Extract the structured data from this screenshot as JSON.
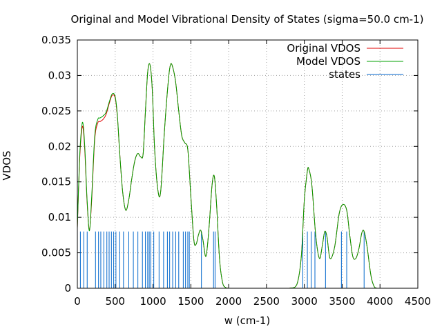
{
  "chart_data": {
    "type": "line",
    "title": "Original and Model Vibrational Density of States (sigma=50.0 cm-1)",
    "xlabel": "w (cm-1)",
    "ylabel": "VDOS",
    "xlim": [
      0,
      4500
    ],
    "ylim": [
      0,
      0.035
    ],
    "xticks": [
      "0",
      "500",
      "1000",
      "1500",
      "2000",
      "2500",
      "3000",
      "3500",
      "4000",
      "4500"
    ],
    "yticks": [
      "0",
      "0.005",
      "0.01",
      "0.015",
      "0.02",
      "0.025",
      "0.03",
      "0.035"
    ],
    "grid": true,
    "legend_position": "top-right",
    "series": [
      {
        "name": "Original VDOS",
        "color": "#e00000",
        "style": "line",
        "x": [
          0,
          30,
          60,
          80,
          100,
          130,
          160,
          190,
          230,
          270,
          300,
          340,
          380,
          420,
          460,
          500,
          530,
          560,
          600,
          640,
          680,
          720,
          760,
          800,
          840,
          870,
          900,
          930,
          960,
          990,
          1020,
          1060,
          1100,
          1150,
          1200,
          1230,
          1260,
          1300,
          1340,
          1380,
          1420,
          1460,
          1500,
          1540,
          1570,
          1600,
          1630,
          1660,
          1700,
          1740,
          1780,
          1810,
          1840,
          1880,
          1920,
          1960,
          2000,
          2100,
          2500,
          2800,
          2900,
          2960,
          3000,
          3040,
          3060,
          3100,
          3150,
          3200,
          3240,
          3270,
          3300,
          3340,
          3400,
          3460,
          3510,
          3560,
          3600,
          3640,
          3680,
          3720,
          3760,
          3790,
          3830,
          3880,
          3920,
          3960,
          4000,
          4500
        ],
        "y": [
          0.0085,
          0.018,
          0.0225,
          0.0222,
          0.019,
          0.012,
          0.0082,
          0.0125,
          0.021,
          0.0233,
          0.0235,
          0.0238,
          0.0245,
          0.026,
          0.0272,
          0.0268,
          0.024,
          0.019,
          0.0135,
          0.011,
          0.0125,
          0.0155,
          0.018,
          0.019,
          0.0185,
          0.019,
          0.025,
          0.0305,
          0.0315,
          0.028,
          0.02,
          0.0142,
          0.0135,
          0.022,
          0.029,
          0.0315,
          0.0312,
          0.029,
          0.025,
          0.0215,
          0.0205,
          0.0195,
          0.013,
          0.0068,
          0.0062,
          0.0075,
          0.0082,
          0.0068,
          0.0045,
          0.0085,
          0.0145,
          0.0158,
          0.0118,
          0.004,
          0.0008,
          0.0001,
          0,
          0,
          0,
          0,
          0.0005,
          0.0045,
          0.0125,
          0.0165,
          0.0168,
          0.0145,
          0.0075,
          0.0042,
          0.0062,
          0.008,
          0.0072,
          0.0042,
          0.0058,
          0.0105,
          0.0118,
          0.011,
          0.0075,
          0.0045,
          0.0042,
          0.0055,
          0.0078,
          0.008,
          0.0058,
          0.0018,
          0.0003,
          0,
          0,
          0
        ]
      },
      {
        "name": "Model VDOS",
        "color": "#00a000",
        "style": "line",
        "x": [
          0,
          30,
          60,
          80,
          100,
          130,
          160,
          190,
          230,
          270,
          300,
          340,
          380,
          420,
          460,
          500,
          530,
          560,
          600,
          640,
          680,
          720,
          760,
          800,
          840,
          870,
          900,
          930,
          960,
          990,
          1020,
          1060,
          1100,
          1150,
          1200,
          1230,
          1260,
          1300,
          1340,
          1380,
          1420,
          1460,
          1500,
          1540,
          1570,
          1600,
          1630,
          1660,
          1700,
          1740,
          1780,
          1810,
          1840,
          1880,
          1920,
          1960,
          2000,
          2100,
          2500,
          2800,
          2900,
          2960,
          3000,
          3040,
          3060,
          3100,
          3150,
          3200,
          3240,
          3270,
          3300,
          3340,
          3400,
          3460,
          3510,
          3560,
          3600,
          3640,
          3680,
          3720,
          3760,
          3790,
          3830,
          3880,
          3920,
          3960,
          4000,
          4500
        ],
        "y": [
          0.0085,
          0.0185,
          0.023,
          0.0228,
          0.0195,
          0.0123,
          0.0081,
          0.013,
          0.0215,
          0.0238,
          0.024,
          0.0243,
          0.0248,
          0.0262,
          0.0274,
          0.027,
          0.0242,
          0.019,
          0.0135,
          0.011,
          0.0125,
          0.0155,
          0.018,
          0.019,
          0.0185,
          0.019,
          0.025,
          0.0305,
          0.0315,
          0.028,
          0.02,
          0.0142,
          0.0135,
          0.022,
          0.029,
          0.0315,
          0.0312,
          0.029,
          0.025,
          0.0215,
          0.0205,
          0.0195,
          0.013,
          0.0068,
          0.0062,
          0.0075,
          0.0082,
          0.0068,
          0.0045,
          0.0085,
          0.0145,
          0.0158,
          0.0118,
          0.004,
          0.0008,
          0.0001,
          0,
          0,
          0,
          0,
          0.0005,
          0.0045,
          0.0125,
          0.0165,
          0.0168,
          0.0145,
          0.0075,
          0.0042,
          0.0062,
          0.008,
          0.0072,
          0.0042,
          0.0058,
          0.0105,
          0.0118,
          0.011,
          0.0075,
          0.0045,
          0.0042,
          0.0055,
          0.0078,
          0.008,
          0.0058,
          0.0018,
          0.0003,
          0,
          0,
          0
        ]
      },
      {
        "name": "states",
        "color": "#0066cc",
        "style": "impulses",
        "impulse_height": 0.008,
        "x": [
          40,
          85,
          130,
          240,
          280,
          310,
          350,
          390,
          420,
          450,
          480,
          510,
          560,
          610,
          680,
          740,
          800,
          860,
          900,
          930,
          950,
          970,
          1010,
          1080,
          1140,
          1190,
          1220,
          1260,
          1300,
          1340,
          1400,
          1430,
          1460,
          1480,
          1640,
          1800,
          1820,
          2980,
          3040,
          3090,
          3140,
          3280,
          3490,
          3560,
          3790
        ]
      }
    ]
  }
}
